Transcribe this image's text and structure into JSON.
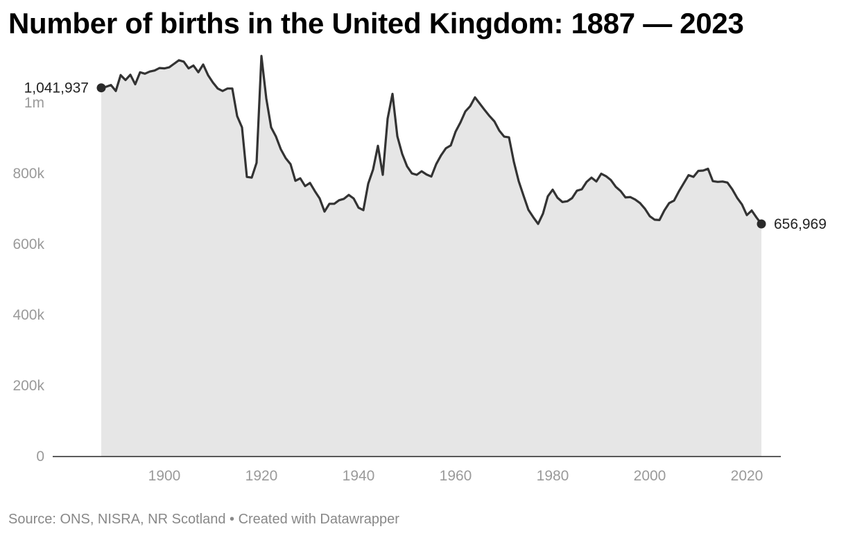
{
  "chart_data": {
    "type": "area",
    "title": "Number of births in the United Kingdom: 1887 — 2023",
    "source": "Source: ONS, NISRA, NR Scotland",
    "credit": "Created with Datawrapper",
    "xlabel": "",
    "ylabel": "",
    "xlim": [
      1877,
      2027
    ],
    "ylim": [
      0,
      1110000
    ],
    "x_ticks": [
      1900,
      1920,
      1940,
      1960,
      1980,
      2000,
      2020
    ],
    "y_ticks": [
      {
        "value": 0,
        "label": "0"
      },
      {
        "value": 200000,
        "label": "200k"
      },
      {
        "value": 400000,
        "label": "400k"
      },
      {
        "value": 600000,
        "label": "600k"
      },
      {
        "value": 800000,
        "label": "800k"
      },
      {
        "value": 1000000,
        "label": "1m"
      }
    ],
    "grid": false,
    "line_color": "#333333",
    "fill_color": "#e6e6e6",
    "annotations": [
      {
        "x": 1887,
        "y": 1041937,
        "text": "1,041,937",
        "side": "left"
      },
      {
        "x": 2023,
        "y": 656969,
        "text": "656,969",
        "side": "right"
      }
    ],
    "x": [
      1887,
      1888,
      1889,
      1890,
      1891,
      1892,
      1893,
      1894,
      1895,
      1896,
      1897,
      1898,
      1899,
      1900,
      1901,
      1902,
      1903,
      1904,
      1905,
      1906,
      1907,
      1908,
      1909,
      1910,
      1911,
      1912,
      1913,
      1914,
      1915,
      1916,
      1917,
      1918,
      1919,
      1920,
      1921,
      1922,
      1923,
      1924,
      1925,
      1926,
      1927,
      1928,
      1929,
      1930,
      1931,
      1932,
      1933,
      1934,
      1935,
      1936,
      1937,
      1938,
      1939,
      1940,
      1941,
      1942,
      1943,
      1944,
      1945,
      1946,
      1947,
      1948,
      1949,
      1950,
      1951,
      1952,
      1953,
      1954,
      1955,
      1956,
      1957,
      1958,
      1959,
      1960,
      1961,
      1962,
      1963,
      1964,
      1965,
      1966,
      1967,
      1968,
      1969,
      1970,
      1971,
      1972,
      1973,
      1974,
      1975,
      1976,
      1977,
      1978,
      1979,
      1980,
      1981,
      1982,
      1983,
      1984,
      1985,
      1986,
      1987,
      1988,
      1989,
      1990,
      1991,
      1992,
      1993,
      1994,
      1995,
      1996,
      1997,
      1998,
      1999,
      2000,
      2001,
      2002,
      2003,
      2004,
      2005,
      2006,
      2007,
      2008,
      2009,
      2010,
      2011,
      2012,
      2013,
      2014,
      2015,
      2016,
      2017,
      2018,
      2019,
      2020,
      2021,
      2022,
      2023
    ],
    "y": [
      1041937,
      1045000,
      1050000,
      1033000,
      1078000,
      1064000,
      1079000,
      1052000,
      1086000,
      1082000,
      1088000,
      1091000,
      1098000,
      1097000,
      1100000,
      1110000,
      1120000,
      1116000,
      1097000,
      1105000,
      1086000,
      1108000,
      1078000,
      1057000,
      1040000,
      1033000,
      1040000,
      1040000,
      962000,
      930000,
      790000,
      788000,
      830000,
      1132000,
      1012000,
      930000,
      904000,
      868000,
      843000,
      826000,
      779000,
      786000,
      764000,
      773000,
      750000,
      729000,
      692000,
      714000,
      714000,
      724000,
      728000,
      739000,
      729000,
      703000,
      696000,
      771000,
      811000,
      878000,
      796000,
      955000,
      1025000,
      905000,
      855000,
      820000,
      800000,
      796000,
      806000,
      797000,
      791000,
      826000,
      851000,
      871000,
      879000,
      918000,
      944000,
      975000,
      990000,
      1015000,
      997000,
      979000,
      962000,
      947000,
      921000,
      904000,
      902000,
      833000,
      778000,
      737000,
      697000,
      676000,
      657000,
      686000,
      735000,
      754000,
      731000,
      719000,
      721000,
      730000,
      751000,
      755000,
      776000,
      788000,
      777000,
      799000,
      792000,
      781000,
      762000,
      750000,
      732000,
      733000,
      726000,
      716000,
      700000,
      679000,
      669000,
      668000,
      695000,
      716000,
      723000,
      749000,
      772000,
      795000,
      790000,
      807000,
      808000,
      813000,
      778000,
      776000,
      777000,
      774000,
      755000,
      731000,
      712000,
      682000,
      695000,
      675000,
      656969
    ]
  }
}
